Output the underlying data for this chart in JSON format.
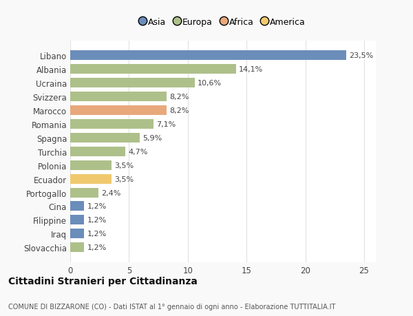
{
  "categories": [
    "Libano",
    "Albania",
    "Ucraina",
    "Svizzera",
    "Marocco",
    "Romania",
    "Spagna",
    "Turchia",
    "Polonia",
    "Ecuador",
    "Portogallo",
    "Cina",
    "Filippine",
    "Iraq",
    "Slovacchia"
  ],
  "values": [
    23.5,
    14.1,
    10.6,
    8.2,
    8.2,
    7.1,
    5.9,
    4.7,
    3.5,
    3.5,
    2.4,
    1.2,
    1.2,
    1.2,
    1.2
  ],
  "labels": [
    "23,5%",
    "14,1%",
    "10,6%",
    "8,2%",
    "8,2%",
    "7,1%",
    "5,9%",
    "4,7%",
    "3,5%",
    "3,5%",
    "2,4%",
    "1,2%",
    "1,2%",
    "1,2%",
    "1,2%"
  ],
  "colors": [
    "#6b8dba",
    "#aec08a",
    "#aec08a",
    "#aec08a",
    "#e8a87c",
    "#aec08a",
    "#aec08a",
    "#aec08a",
    "#aec08a",
    "#f0c96e",
    "#aec08a",
    "#6b8dba",
    "#6b8dba",
    "#6b8dba",
    "#aec08a"
  ],
  "legend_labels": [
    "Asia",
    "Europa",
    "Africa",
    "America"
  ],
  "legend_colors": [
    "#6b8dba",
    "#aec08a",
    "#e8a87c",
    "#f0c96e"
  ],
  "title": "Cittadini Stranieri per Cittadinanza",
  "subtitle": "COMUNE DI BIZZARONE (CO) - Dati ISTAT al 1° gennaio di ogni anno - Elaborazione TUTTITALIA.IT",
  "xlim": [
    0,
    26
  ],
  "xticks": [
    0,
    5,
    10,
    15,
    20,
    25
  ],
  "background_color": "#f9f9f9",
  "plot_bg_color": "#ffffff",
  "grid_color": "#e0e0e0"
}
